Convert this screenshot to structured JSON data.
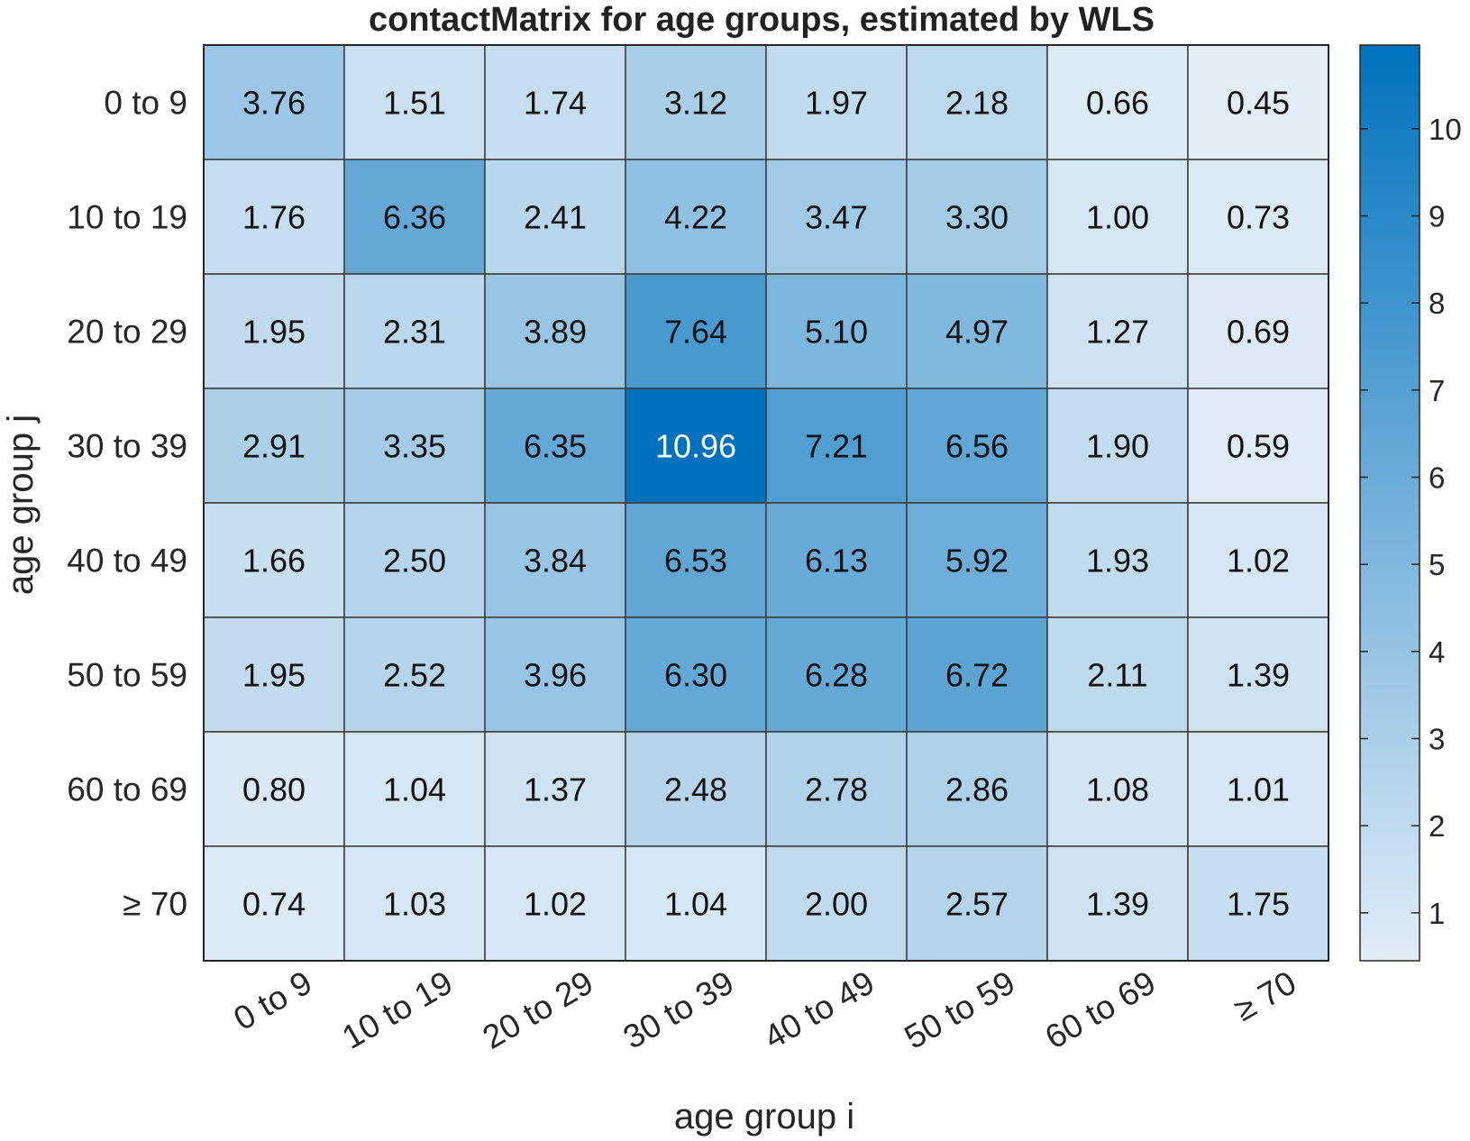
{
  "chart_data": {
    "type": "heatmap",
    "title": "contactMatrix for age groups, estimated by WLS",
    "xlabel": "age group i",
    "ylabel": "age group j",
    "x_categories": [
      "0 to 9",
      "10 to 19",
      "20 to 29",
      "30 to 39",
      "40 to 49",
      "50 to 59",
      "60 to 69",
      "≥ 70"
    ],
    "y_categories": [
      "0 to 9",
      "10 to 19",
      "20 to 29",
      "30 to 39",
      "40 to 49",
      "50 to 59",
      "60 to 69",
      "≥ 70"
    ],
    "values": [
      [
        "3.76",
        "1.51",
        "1.74",
        "3.12",
        "1.97",
        "2.18",
        "0.66",
        "0.45"
      ],
      [
        "1.76",
        "6.36",
        "2.41",
        "4.22",
        "3.47",
        "3.30",
        "1.00",
        "0.73"
      ],
      [
        "1.95",
        "2.31",
        "3.89",
        "7.64",
        "5.10",
        "4.97",
        "1.27",
        "0.69"
      ],
      [
        "2.91",
        "3.35",
        "6.35",
        "10.96",
        "7.21",
        "6.56",
        "1.90",
        "0.59"
      ],
      [
        "1.66",
        "2.50",
        "3.84",
        "6.53",
        "6.13",
        "5.92",
        "1.93",
        "1.02"
      ],
      [
        "1.95",
        "2.52",
        "3.96",
        "6.30",
        "6.28",
        "6.72",
        "2.11",
        "1.39"
      ],
      [
        "0.80",
        "1.04",
        "1.37",
        "2.48",
        "2.78",
        "2.86",
        "1.08",
        "1.01"
      ],
      [
        "0.74",
        "1.03",
        "1.02",
        "1.04",
        "2.00",
        "2.57",
        "1.39",
        "1.75"
      ]
    ],
    "colorbar": {
      "ticks": [
        "1",
        "2",
        "3",
        "4",
        "5",
        "6",
        "7",
        "8",
        "9",
        "10"
      ],
      "range": [
        0.45,
        10.96
      ],
      "low_color": "#e2edf7",
      "high_color": "#0072bd"
    },
    "grid": true
  }
}
